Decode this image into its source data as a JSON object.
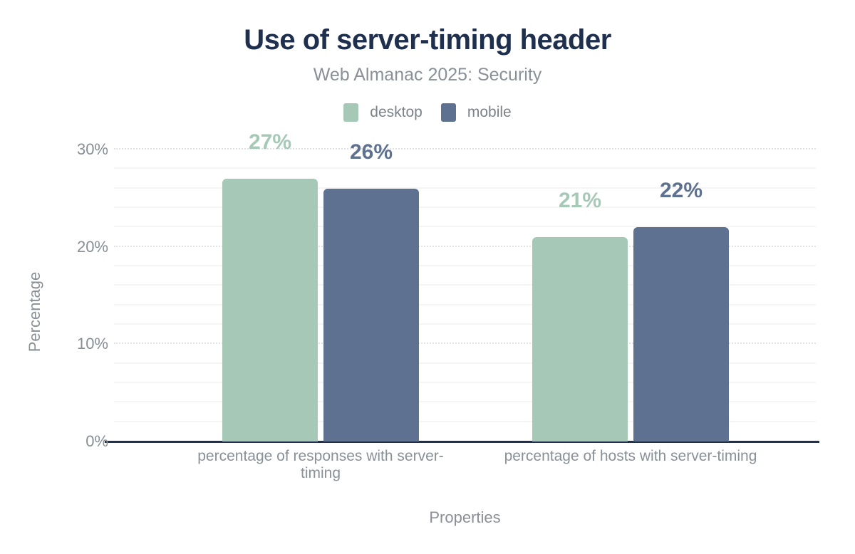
{
  "chart_data": {
    "type": "bar",
    "title": "Use of server-timing header",
    "subtitle": "Web Almanac 2025: Security",
    "categories": [
      "percentage of responses with server-timing",
      "percentage of hosts with server-timing"
    ],
    "series": [
      {
        "name": "desktop",
        "color": "#a5c8b7",
        "values": [
          27,
          21
        ]
      },
      {
        "name": "mobile",
        "color": "#5e7190",
        "values": [
          26,
          22
        ]
      }
    ],
    "value_suffix": "%",
    "xlabel": "Properties",
    "ylabel": "Percentage",
    "ylim": [
      0,
      31
    ],
    "yticks": [
      0,
      10,
      20,
      30
    ],
    "ytick_suffix": "%",
    "minor_grid_step": 2,
    "legend_position": "top",
    "grid": true,
    "colors": {
      "title_text": "#1f2f4e",
      "axis_line": "#1f2f4e",
      "secondary_text": "#8a9097",
      "minor_gridline": "#f5f5f6",
      "major_gridline": "#e2e2e4",
      "background": "#ffffff"
    }
  }
}
